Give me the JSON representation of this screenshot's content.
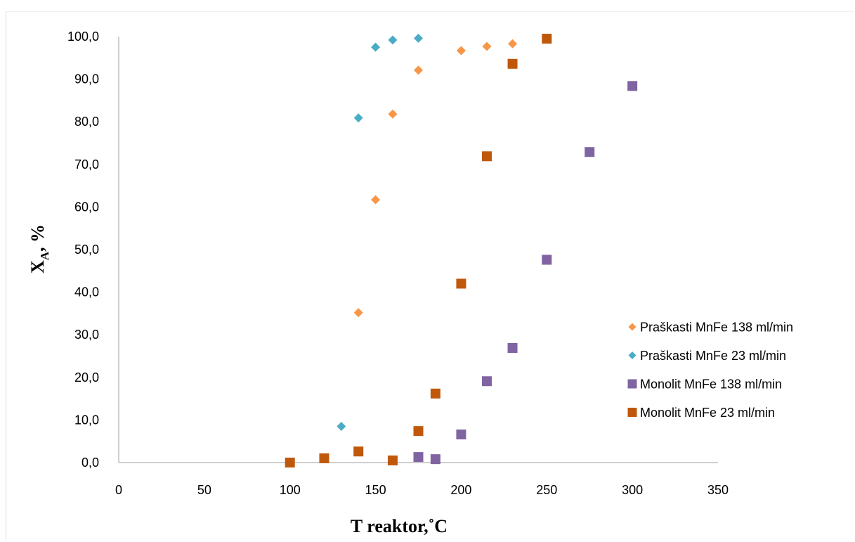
{
  "chart_data": {
    "type": "scatter",
    "xlabel": "T reaktor,˚C",
    "ylabel_main": "X",
    "ylabel_sub": "A",
    "ylabel_rest": ", %",
    "xlim": [
      0,
      350
    ],
    "ylim": [
      0,
      100
    ],
    "x_ticks": [
      "0",
      "50",
      "100",
      "150",
      "200",
      "250",
      "300",
      "350"
    ],
    "x_tick_values": [
      0,
      50,
      100,
      150,
      200,
      250,
      300,
      350
    ],
    "y_ticks": [
      "0,0",
      "10,0",
      "20,0",
      "30,0",
      "40,0",
      "50,0",
      "60,0",
      "70,0",
      "80,0",
      "90,0",
      "100,0"
    ],
    "y_tick_values": [
      0,
      10,
      20,
      30,
      40,
      50,
      60,
      70,
      80,
      90,
      100
    ],
    "grid": false,
    "legend_position": "right",
    "series": [
      {
        "name": "Praškasti MnFe 138 ml/min",
        "marker": "diamond",
        "color": "#F79646",
        "points": [
          [
            140,
            35.2
          ],
          [
            150,
            61.7
          ],
          [
            160,
            81.8
          ],
          [
            175,
            92.1
          ],
          [
            200,
            96.7
          ],
          [
            215,
            97.7
          ],
          [
            230,
            98.3
          ]
        ]
      },
      {
        "name": "Praškasti MnFe 23 ml/min",
        "marker": "diamond",
        "color": "#4BACC6",
        "points": [
          [
            130,
            8.5
          ],
          [
            140,
            80.9
          ],
          [
            150,
            97.5
          ],
          [
            160,
            99.2
          ],
          [
            175,
            99.6
          ]
        ]
      },
      {
        "name": "Monolit MnFe 138 ml/min",
        "marker": "square",
        "color": "#8064A2",
        "points": [
          [
            175,
            1.3
          ],
          [
            185,
            0.8
          ],
          [
            200,
            6.6
          ],
          [
            215,
            19.1
          ],
          [
            230,
            26.9
          ],
          [
            250,
            47.6
          ],
          [
            275,
            72.9
          ],
          [
            300,
            88.4
          ]
        ]
      },
      {
        "name": "Monolit MnFe 23 ml/min",
        "marker": "square",
        "color": "#C0580C",
        "points": [
          [
            100,
            0.0
          ],
          [
            120,
            1.0
          ],
          [
            140,
            2.6
          ],
          [
            160,
            0.5
          ],
          [
            175,
            7.4
          ],
          [
            185,
            16.2
          ],
          [
            200,
            42.0
          ],
          [
            215,
            71.9
          ],
          [
            230,
            93.6
          ],
          [
            250,
            99.5
          ]
        ]
      }
    ]
  }
}
